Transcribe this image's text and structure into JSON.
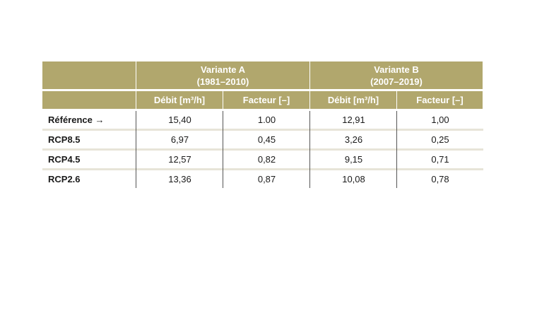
{
  "table": {
    "groups": [
      {
        "title": "Variante A",
        "period": "(1981–2010)"
      },
      {
        "title": "Variante B",
        "period": "(2007–2019)"
      }
    ],
    "columns": [
      "Débit [m³/h]",
      "Facteur [–]",
      "Débit [m³/h]",
      "Facteur [–]"
    ],
    "rows": [
      [
        "Référence →",
        "15,40",
        "1.00",
        "12,91",
        "1,00"
      ],
      [
        "RCP8.5",
        "6,97",
        "0,45",
        "3,26",
        "0,25"
      ],
      [
        "RCP4.5",
        "12,57",
        "0,82",
        "9,15",
        "0,71"
      ],
      [
        "RCP2.6",
        "13,36",
        "0,87",
        "10,08",
        "0,78"
      ]
    ]
  }
}
